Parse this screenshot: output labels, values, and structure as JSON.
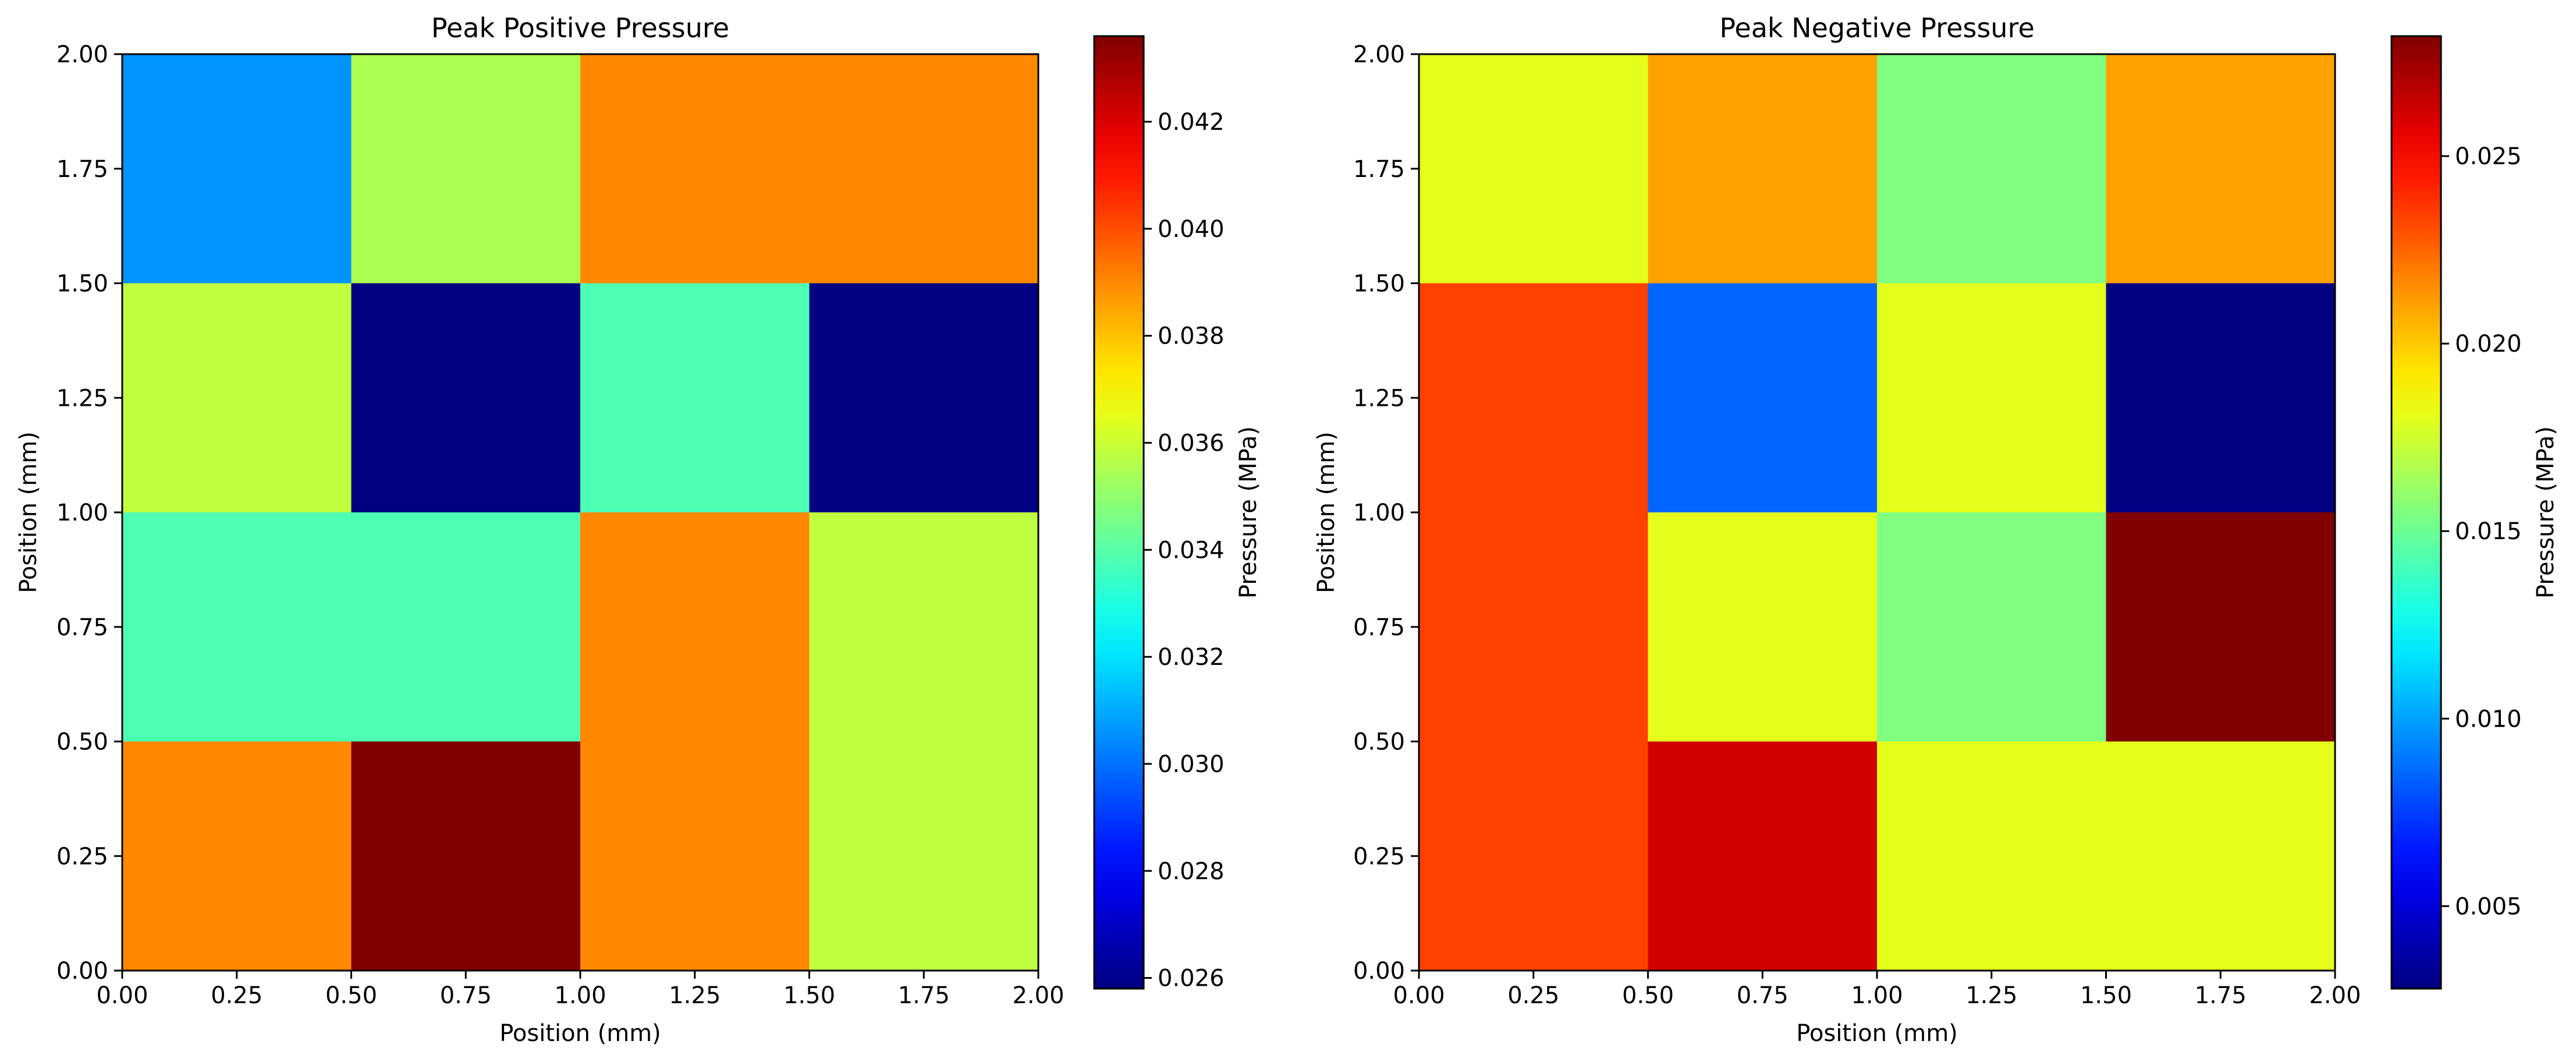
{
  "chart_data": [
    {
      "type": "heatmap",
      "title": "Peak Positive Pressure",
      "xlabel": "Position (mm)",
      "ylabel": "Position (mm)",
      "xlim": [
        0,
        2
      ],
      "ylim": [
        0,
        2
      ],
      "x_ticks": [
        "0.00",
        "0.25",
        "0.50",
        "0.75",
        "1.00",
        "1.25",
        "1.50",
        "1.75",
        "2.00"
      ],
      "y_ticks": [
        "0.00",
        "0.25",
        "0.50",
        "0.75",
        "1.00",
        "1.25",
        "1.50",
        "1.75",
        "2.00"
      ],
      "x_edges": [
        0,
        0.5,
        1.0,
        1.5,
        2.0
      ],
      "y_edges": [
        0,
        0.5,
        1.0,
        1.5,
        2.0
      ],
      "values_bottom_to_top": [
        [
          0.039,
          0.0436,
          0.039,
          0.0358
        ],
        [
          0.0338,
          0.0338,
          0.039,
          0.0358
        ],
        [
          0.0358,
          0.0258,
          0.0338,
          0.0258
        ],
        [
          0.0306,
          0.0355,
          0.039,
          0.039
        ]
      ],
      "colorbar": {
        "label": "Pressure (MPa)",
        "range": [
          0.0258,
          0.0436
        ],
        "colormap": "jet",
        "ticks": [
          "0.026",
          "0.028",
          "0.030",
          "0.032",
          "0.034",
          "0.036",
          "0.038",
          "0.040",
          "0.042"
        ],
        "tick_values": [
          0.026,
          0.028,
          0.03,
          0.032,
          0.034,
          0.036,
          0.038,
          0.04,
          0.042
        ]
      }
    },
    {
      "type": "heatmap",
      "title": "Peak Negative Pressure",
      "xlabel": "Position (mm)",
      "ylabel": "Position (mm)",
      "xlim": [
        0,
        2
      ],
      "ylim": [
        0,
        2
      ],
      "x_ticks": [
        "0.00",
        "0.25",
        "0.50",
        "0.75",
        "1.00",
        "1.25",
        "1.50",
        "1.75",
        "2.00"
      ],
      "y_ticks": [
        "0.00",
        "0.25",
        "0.50",
        "0.75",
        "1.00",
        "1.25",
        "1.50",
        "1.75",
        "2.00"
      ],
      "x_edges": [
        0,
        0.5,
        1.0,
        1.5,
        2.0
      ],
      "y_edges": [
        0,
        0.5,
        1.0,
        1.5,
        2.0
      ],
      "values_bottom_to_top": [
        [
          0.0234,
          0.0262,
          0.018,
          0.018
        ],
        [
          0.0234,
          0.018,
          0.0155,
          0.0282
        ],
        [
          0.0234,
          0.0085,
          0.018,
          0.0028
        ],
        [
          0.018,
          0.021,
          0.0155,
          0.021
        ]
      ],
      "colorbar": {
        "label": "Pressure (MPa)",
        "range": [
          0.0028,
          0.0282
        ],
        "colormap": "jet",
        "ticks": [
          "0.005",
          "0.010",
          "0.015",
          "0.020",
          "0.025"
        ],
        "tick_values": [
          0.005,
          0.01,
          0.015,
          0.02,
          0.025
        ]
      }
    }
  ]
}
